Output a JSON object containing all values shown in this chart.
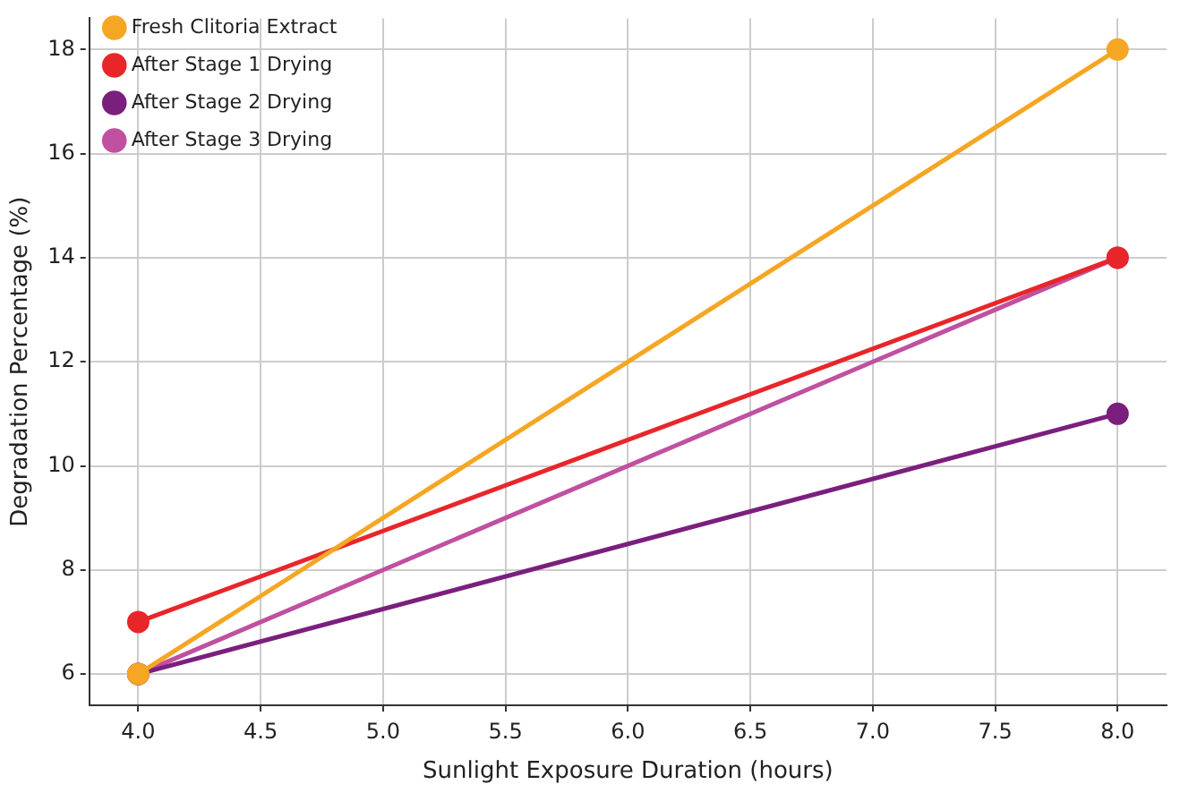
{
  "chart_data": {
    "type": "line",
    "xlabel": "Sunlight Exposure Duration (hours)",
    "ylabel": "Degradation Percentage (%)",
    "x": [
      4.0,
      8.0
    ],
    "series": [
      {
        "name": "Fresh Clitoria Extract",
        "color": "#f5a623",
        "values": [
          6,
          18
        ]
      },
      {
        "name": "After Stage 1 Drying",
        "color": "#e8262a",
        "values": [
          7,
          14
        ]
      },
      {
        "name": "After Stage 2 Drying",
        "color": "#7b1f7e",
        "values": [
          6,
          11
        ]
      },
      {
        "name": "After Stage 3 Drying",
        "color": "#c050a0",
        "values": [
          6,
          14
        ]
      }
    ],
    "xlim": [
      3.8,
      8.2
    ],
    "xticks": [
      {
        "value": 4,
        "label": "4.0"
      },
      {
        "value": 4.5,
        "label": "4.5"
      },
      {
        "value": 5,
        "label": "5.0"
      },
      {
        "value": 5.5,
        "label": "5.5"
      },
      {
        "value": 6,
        "label": "6.0"
      },
      {
        "value": 6.5,
        "label": "6.5"
      },
      {
        "value": 7,
        "label": "7.0"
      },
      {
        "value": 7.5,
        "label": "7.5"
      },
      {
        "value": 8,
        "label": "8.0"
      }
    ],
    "ylim": [
      5.4,
      18.6
    ],
    "yticks": [
      6,
      8,
      10,
      12,
      14,
      16,
      18
    ],
    "grid": true,
    "legend": "top left",
    "marker": "circle",
    "line_style": "solid"
  }
}
